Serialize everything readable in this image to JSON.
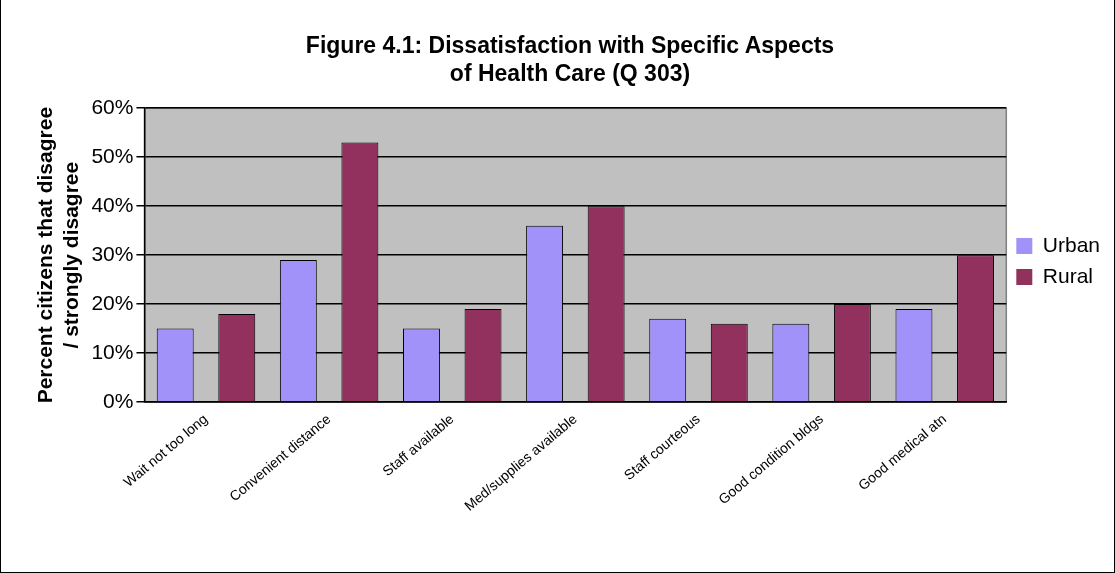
{
  "chart_data": {
    "type": "bar",
    "title": "Figure 4.1: Dissatisfaction with Specific Aspects of Health Care (Q 303)",
    "ylabel": "Percent citizens that disagree / strongly disagree",
    "categories": [
      "Wait not too long",
      "Convenient distance",
      "Staff available",
      "Med/supplies available",
      "Staff courteous",
      "Good condition bldgs",
      "Good medical atn"
    ],
    "series": [
      {
        "name": "Urban",
        "color": "#a192fa",
        "values": [
          15,
          29,
          15,
          36,
          17,
          16,
          19
        ]
      },
      {
        "name": "Rural",
        "color": "#92305e",
        "values": [
          18,
          53,
          19,
          40,
          16,
          20,
          30
        ]
      }
    ],
    "ylim": [
      0,
      60
    ],
    "yticks": [
      {
        "value": 0,
        "label": "0%"
      },
      {
        "value": 10,
        "label": "10%"
      },
      {
        "value": 20,
        "label": "20%"
      },
      {
        "value": 30,
        "label": "30%"
      },
      {
        "value": 40,
        "label": "40%"
      },
      {
        "value": 50,
        "label": "50%"
      },
      {
        "value": 60,
        "label": "60%"
      }
    ],
    "grid": "y",
    "legend": "right"
  }
}
